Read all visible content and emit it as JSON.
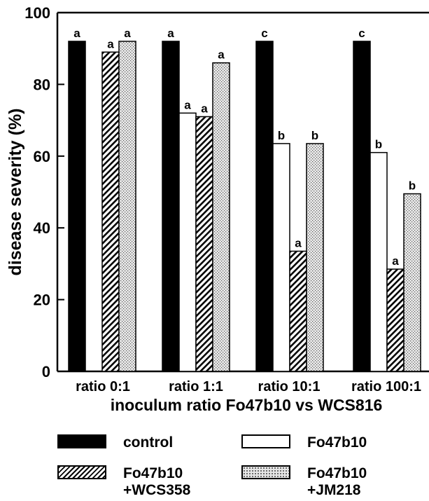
{
  "chart_data": {
    "type": "bar",
    "title": "",
    "ylabel": "disease severity (%)",
    "xlabel": "inoculum ratio Fo47b10 vs WCS816",
    "ylim": [
      0,
      100
    ],
    "yticks": [
      0,
      20,
      40,
      60,
      80,
      100
    ],
    "categories": [
      "ratio  0:1",
      "ratio  1:1",
      "ratio  10:1",
      "ratio  100:1"
    ],
    "series": [
      {
        "name": "control",
        "fill": "solid-black",
        "values": [
          92,
          92,
          92,
          92
        ],
        "letters": [
          "a",
          "a",
          "c",
          "c"
        ]
      },
      {
        "name": "Fo47b10",
        "fill": "white",
        "values": [
          null,
          72,
          63.5,
          61
        ],
        "letters": [
          null,
          "a",
          "b",
          "b"
        ]
      },
      {
        "name": "Fo47b10\n+WCS358",
        "fill": "hatched",
        "values": [
          89,
          71,
          33.5,
          28.5
        ],
        "letters": [
          "a",
          "a",
          "a",
          "a"
        ]
      },
      {
        "name": "Fo47b10\n+JM218",
        "fill": "dotted",
        "values": [
          92,
          86,
          63.5,
          49.5
        ],
        "letters": [
          "a",
          "a",
          "b",
          "b"
        ]
      }
    ],
    "legend_placement": "bottom",
    "grid": false
  },
  "legend": {
    "control": "control",
    "fo47b10": "Fo47b10",
    "wcs358": "Fo47b10\n+WCS358",
    "jm218": "Fo47b10\n+JM218"
  }
}
